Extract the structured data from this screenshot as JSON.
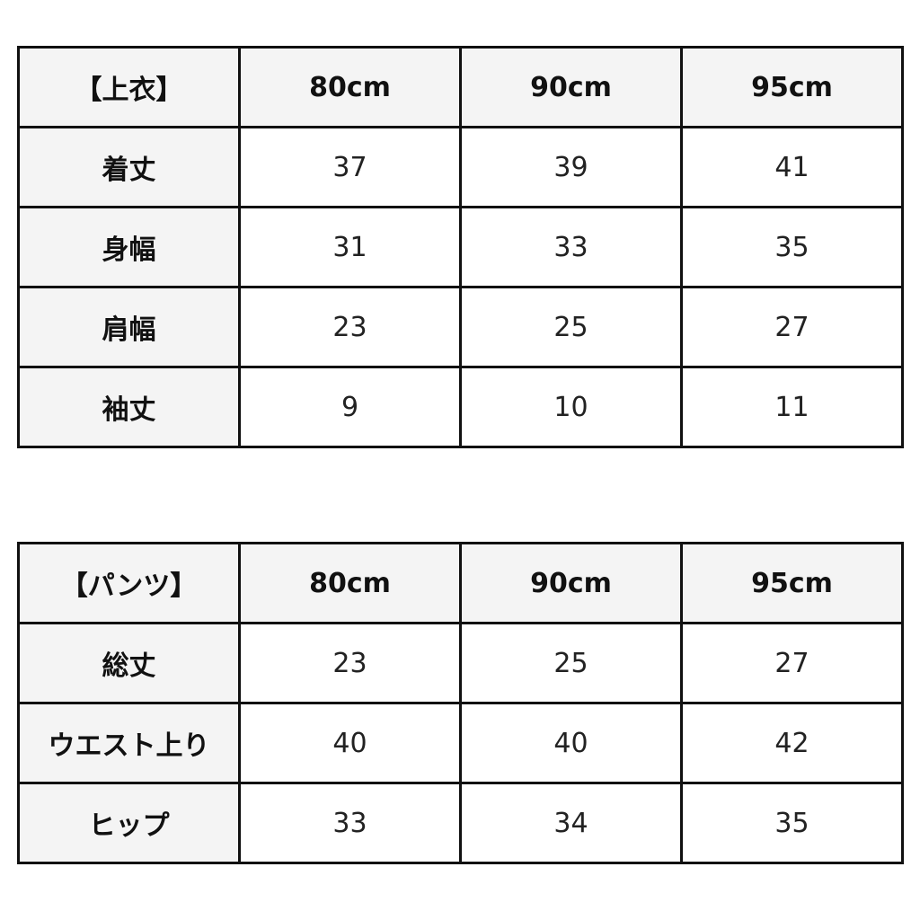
{
  "tops": {
    "corner": "【上衣】",
    "sizes": [
      "80cm",
      "90cm",
      "95cm"
    ],
    "rows": [
      {
        "label": "着丈",
        "values": [
          "37",
          "39",
          "41"
        ]
      },
      {
        "label": "身幅",
        "values": [
          "31",
          "33",
          "35"
        ]
      },
      {
        "label": "肩幅",
        "values": [
          "23",
          "25",
          "27"
        ]
      },
      {
        "label": "袖丈",
        "values": [
          "9",
          "10",
          "11"
        ]
      }
    ]
  },
  "pants": {
    "corner": "【パンツ】",
    "sizes": [
      "80cm",
      "90cm",
      "95cm"
    ],
    "rows": [
      {
        "label": "総丈",
        "values": [
          "23",
          "25",
          "27"
        ]
      },
      {
        "label": "ウエスト上り",
        "values": [
          "40",
          "40",
          "42"
        ]
      },
      {
        "label": "ヒップ",
        "values": [
          "33",
          "34",
          "35"
        ]
      }
    ]
  },
  "colors": {
    "header_bg": "#f4f4f4",
    "border": "#111111"
  }
}
